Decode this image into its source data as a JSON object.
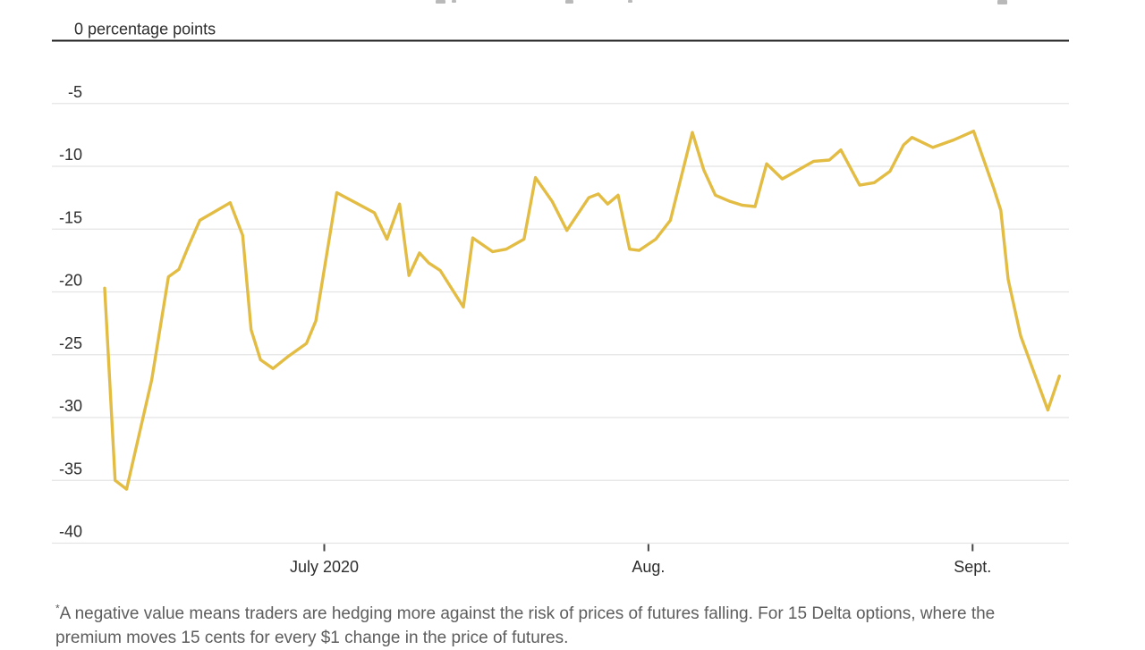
{
  "footnote": {
    "asterisk": "*",
    "line1": "A negative value means traders are hedging more against the risk of prices of futures falling. For 15 Delta options, where the",
    "line2": "premium moves 15 cents for every $1 change in the price of futures."
  },
  "chart_data": {
    "type": "line",
    "title": "",
    "unit_label": "0 percentage points",
    "ylabel": "percentage points",
    "xlabel": "",
    "ylim": [
      -40,
      0
    ],
    "grid": "horizontal-light",
    "legend": "none",
    "yticks": [
      {
        "value": 0,
        "label": "0 percentage points"
      },
      {
        "value": -5,
        "label": "-5"
      },
      {
        "value": -10,
        "label": "-10"
      },
      {
        "value": -15,
        "label": "-15"
      },
      {
        "value": -20,
        "label": "-20"
      },
      {
        "value": -25,
        "label": "-25"
      },
      {
        "value": -30,
        "label": "-30"
      },
      {
        "value": -35,
        "label": "-35"
      },
      {
        "value": -40,
        "label": "-40"
      }
    ],
    "x_axis": {
      "type": "date",
      "start_date": "2020-06-10",
      "point_x_unit": "days_from_start_date"
    },
    "xticks": [
      {
        "label": "July 2020",
        "days_from_start": 21
      },
      {
        "label": "Aug.",
        "days_from_start": 52
      },
      {
        "label": "Sept.",
        "days_from_start": 83
      }
    ],
    "series": [
      {
        "name": "",
        "color": "#e3bc44",
        "points": [
          [
            0,
            -19.7
          ],
          [
            1,
            -35.0
          ],
          [
            2.1,
            -35.7
          ],
          [
            4.5,
            -27.0
          ],
          [
            6.1,
            -18.8
          ],
          [
            7.1,
            -18.2
          ],
          [
            8,
            -16.4
          ],
          [
            9.1,
            -14.3
          ],
          [
            12,
            -12.9
          ],
          [
            13.2,
            -15.5
          ],
          [
            14,
            -23.0
          ],
          [
            14.9,
            -25.4
          ],
          [
            16.1,
            -26.1
          ],
          [
            17.6,
            -25.1
          ],
          [
            19.3,
            -24.1
          ],
          [
            20.2,
            -22.3
          ],
          [
            22.2,
            -12.1
          ],
          [
            24,
            -12.9
          ],
          [
            25.8,
            -13.7
          ],
          [
            27,
            -15.8
          ],
          [
            28.2,
            -13.0
          ],
          [
            29.1,
            -18.7
          ],
          [
            30.1,
            -16.9
          ],
          [
            31,
            -17.7
          ],
          [
            32.1,
            -18.3
          ],
          [
            34.3,
            -21.2
          ],
          [
            35.2,
            -15.7
          ],
          [
            37.1,
            -16.8
          ],
          [
            38.4,
            -16.6
          ],
          [
            40.1,
            -15.8
          ],
          [
            41.2,
            -10.9
          ],
          [
            42.8,
            -12.8
          ],
          [
            44.2,
            -15.1
          ],
          [
            46.3,
            -12.5
          ],
          [
            47.2,
            -12.2
          ],
          [
            48.1,
            -13.0
          ],
          [
            49.1,
            -12.3
          ],
          [
            50.2,
            -16.6
          ],
          [
            51.1,
            -16.7
          ],
          [
            52.7,
            -15.8
          ],
          [
            54.1,
            -14.3
          ],
          [
            56.2,
            -7.3
          ],
          [
            57.3,
            -10.3
          ],
          [
            58.4,
            -12.3
          ],
          [
            59.8,
            -12.8
          ],
          [
            61,
            -13.1
          ],
          [
            62.2,
            -13.2
          ],
          [
            63.3,
            -9.8
          ],
          [
            64.8,
            -11.0
          ],
          [
            67.8,
            -9.6
          ],
          [
            69.3,
            -9.5
          ],
          [
            70.4,
            -8.7
          ],
          [
            72.2,
            -11.5
          ],
          [
            73.6,
            -11.3
          ],
          [
            75.1,
            -10.4
          ],
          [
            76.4,
            -8.3
          ],
          [
            77.2,
            -7.7
          ],
          [
            79.2,
            -8.5
          ],
          [
            81.2,
            -7.9
          ],
          [
            83.1,
            -7.2
          ],
          [
            85,
            -11.7
          ],
          [
            85.7,
            -13.5
          ],
          [
            86.4,
            -19.0
          ],
          [
            87.6,
            -23.5
          ],
          [
            89,
            -26.7
          ],
          [
            90.2,
            -29.4
          ],
          [
            91.3,
            -26.7
          ]
        ]
      }
    ]
  }
}
